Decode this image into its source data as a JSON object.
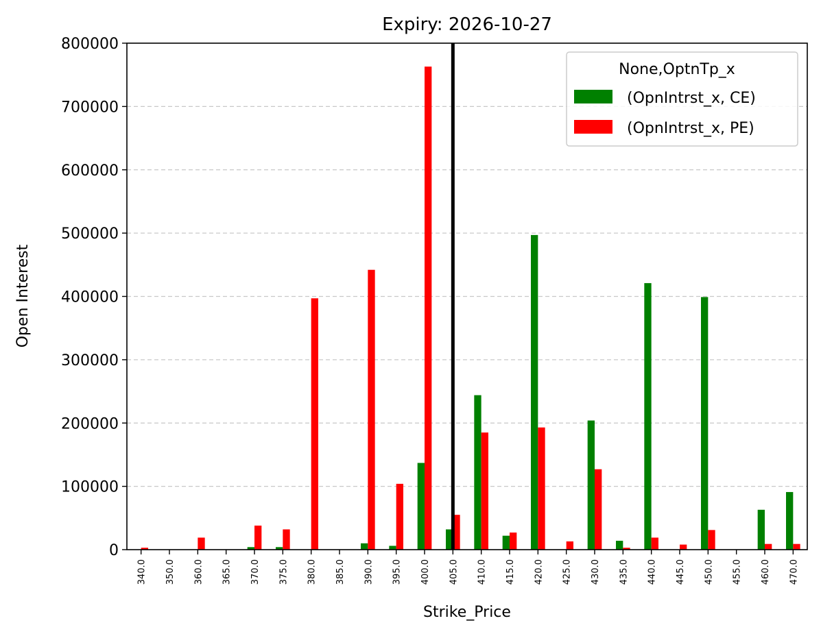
{
  "chart_data": {
    "type": "bar",
    "title": "Expiry: 2026-10-27",
    "xlabel": "Strike_Price",
    "ylabel": "Open Interest",
    "ylim": [
      0,
      800000
    ],
    "yticks": [
      0,
      100000,
      200000,
      300000,
      400000,
      500000,
      600000,
      700000,
      800000
    ],
    "ytick_labels": [
      "0",
      "100000",
      "200000",
      "300000",
      "400000",
      "500000",
      "600000",
      "700000",
      "800000"
    ],
    "grid": "horizontal dashed",
    "legend_title": "None,OptnTp_x",
    "legend_position": "top-right",
    "categories": [
      "340.0",
      "350.0",
      "360.0",
      "365.0",
      "370.0",
      "375.0",
      "380.0",
      "385.0",
      "390.0",
      "395.0",
      "400.0",
      "405.0",
      "410.0",
      "415.0",
      "420.0",
      "425.0",
      "430.0",
      "435.0",
      "440.0",
      "445.0",
      "450.0",
      "455.0",
      "460.0",
      "470.0"
    ],
    "series": [
      {
        "name": "(OpnIntrst_x, CE)",
        "color": "#008000",
        "values": [
          0,
          0,
          0,
          0,
          4000,
          4000,
          0,
          0,
          10000,
          6000,
          137000,
          32000,
          244000,
          22000,
          497000,
          0,
          204000,
          14000,
          421000,
          0,
          399000,
          0,
          63000,
          91000
        ]
      },
      {
        "name": "(OpnIntrst_x, PE)",
        "color": "#ff0000",
        "values": [
          3000,
          0,
          19000,
          0,
          38000,
          32000,
          397000,
          0,
          442000,
          104000,
          763000,
          55000,
          185000,
          27000,
          193000,
          13000,
          127000,
          3000,
          19000,
          8000,
          31000,
          0,
          9000,
          9000
        ]
      }
    ],
    "vline": {
      "category": "405.0",
      "color": "#000000"
    }
  }
}
